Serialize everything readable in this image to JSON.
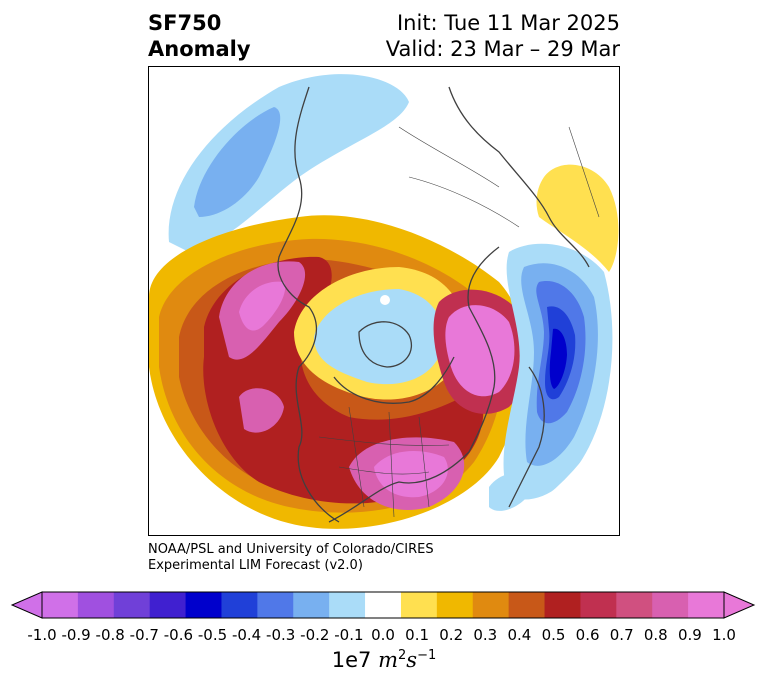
{
  "title": {
    "left_line1": "SF750",
    "left_line2": "Anomaly",
    "right_line1": "Init: Tue 11 Mar 2025",
    "right_line2": "Valid: 23 Mar – 29 Mar"
  },
  "credit": {
    "line1": "NOAA/PSL and University of Colorado/CIRES",
    "line2": "Experimental LIM Forecast (v2.0)"
  },
  "colorbar": {
    "ticks": [
      "-1.0",
      "-0.9",
      "-0.8",
      "-0.7",
      "-0.6",
      "-0.5",
      "-0.4",
      "-0.3",
      "-0.2",
      "-0.1",
      "0.0",
      "0.1",
      "0.2",
      "0.3",
      "0.4",
      "0.5",
      "0.6",
      "0.7",
      "0.8",
      "0.9",
      "1.0"
    ],
    "colors": [
      "#d070e8",
      "#a050e0",
      "#7040d8",
      "#4020d0",
      "#0000cc",
      "#2040d8",
      "#5078e8",
      "#78b0f0",
      "#aadcf8",
      "#ffffff",
      "#ffe050",
      "#f0b800",
      "#e08a10",
      "#c85818",
      "#b02020",
      "#c03050",
      "#d05080",
      "#d860b0",
      "#e878d8"
    ],
    "extend_low_color": "#d070e8",
    "extend_high_color": "#e878d8",
    "unit_base": "1e7",
    "unit_m": "m",
    "unit_m_exp": "2",
    "unit_s": "s",
    "unit_s_exp": "−1"
  },
  "map": {
    "projection": "north-polar-stereographic",
    "field": "750 hPa streamfunction anomaly",
    "region_colors": {
      "pos_light": "#ffe050",
      "pos_mid": "#f0b800",
      "pos_orange": "#e08a10",
      "pos_brown": "#c85818",
      "pos_red": "#b02020",
      "pos_crimson": "#c03050",
      "pos_pink": "#d860b0",
      "pos_magenta": "#e878d8",
      "neg_light": "#aadcf8",
      "neg_sky": "#78b0f0",
      "neg_mid": "#5078e8",
      "neg_blue": "#2040d8",
      "neg_deep": "#0000cc",
      "coast": "#404040"
    }
  }
}
